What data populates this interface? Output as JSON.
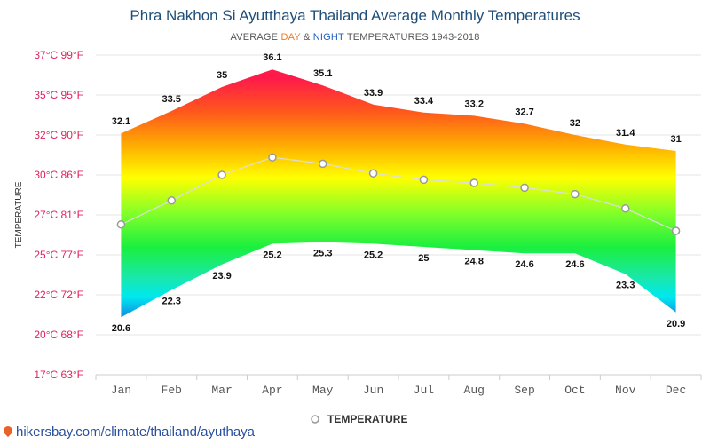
{
  "title": "Phra Nakhon Si Ayutthaya Thailand Average Monthly Temperatures",
  "subtitle": {
    "prefix": "AVERAGE ",
    "day": "DAY",
    "amp": " & ",
    "night": "NIGHT",
    "suffix": " TEMPERATURES 1943-2018"
  },
  "footer": "hikersbay.com/climate/thailand/ayuthaya",
  "colors": {
    "title": "#1f4e79",
    "day_accent": "#f47c20",
    "night_accent": "#1f5fbf",
    "axis_label": "#e0245e",
    "line": "#dddddd"
  },
  "chart_data": {
    "type": "area",
    "categories": [
      "Jan",
      "Feb",
      "Mar",
      "Apr",
      "May",
      "Jun",
      "Jul",
      "Aug",
      "Sep",
      "Oct",
      "Nov",
      "Dec"
    ],
    "ylabel": "TEMPERATURE",
    "y_ticks": [
      {
        "c": 17,
        "label": "17°C 63°F"
      },
      {
        "c": 20,
        "label": "20°C 68°F"
      },
      {
        "c": 22,
        "label": "22°C 72°F"
      },
      {
        "c": 25,
        "label": "25°C 77°F"
      },
      {
        "c": 27,
        "label": "27°C 81°F"
      },
      {
        "c": 30,
        "label": "30°C 86°F"
      },
      {
        "c": 32,
        "label": "32°C 90°F"
      },
      {
        "c": 35,
        "label": "35°C 95°F"
      },
      {
        "c": 37,
        "label": "37°C 99°F"
      }
    ],
    "ylim": [
      17,
      37
    ],
    "grid": true,
    "legend": {
      "position": "bottom",
      "label": "TEMPERATURE"
    },
    "series": [
      {
        "name": "day",
        "values": [
          32.1,
          33.5,
          35,
          36.1,
          35.1,
          33.9,
          33.4,
          33.2,
          32.7,
          32,
          31.4,
          31
        ]
      },
      {
        "name": "night",
        "values": [
          20.6,
          22.3,
          23.9,
          25.2,
          25.3,
          25.2,
          25,
          24.8,
          24.6,
          24.6,
          23.3,
          20.9
        ]
      },
      {
        "name": "TEMPERATURE",
        "values": [
          26.4,
          27.9,
          29.5,
          30.6,
          30.2,
          29.6,
          29.2,
          29.0,
          28.7,
          28.3,
          27.4,
          26.0
        ]
      }
    ]
  }
}
